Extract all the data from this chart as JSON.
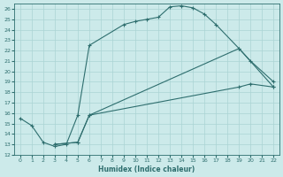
{
  "xlabel": "Humidex (Indice chaleur)",
  "background_color": "#cceaea",
  "grid_color": "#aad4d4",
  "line_color": "#2e6e6e",
  "xlim": [
    -0.5,
    22.5
  ],
  "ylim": [
    12,
    26.5
  ],
  "yticks": [
    12,
    13,
    14,
    15,
    16,
    17,
    18,
    19,
    20,
    21,
    22,
    23,
    24,
    25,
    26
  ],
  "xticks": [
    0,
    1,
    2,
    3,
    4,
    5,
    6,
    7,
    8,
    9,
    10,
    11,
    12,
    13,
    14,
    15,
    16,
    17,
    18,
    19,
    20,
    21,
    22
  ],
  "line1_x": [
    0,
    1,
    2,
    3,
    4,
    5,
    6,
    9,
    10,
    11,
    12,
    13,
    14,
    15,
    16,
    17,
    19,
    22
  ],
  "line1_y": [
    15.5,
    14.8,
    13.2,
    12.8,
    13.0,
    15.8,
    22.5,
    24.5,
    24.8,
    25.0,
    25.2,
    26.2,
    26.3,
    26.1,
    25.5,
    24.5,
    22.2,
    18.5
  ],
  "line2_x": [
    3,
    5,
    6,
    19,
    20,
    22
  ],
  "line2_y": [
    13.0,
    13.2,
    15.8,
    22.2,
    21.0,
    19.0
  ],
  "line3_x": [
    3,
    5,
    6,
    19,
    20,
    22
  ],
  "line3_y": [
    13.0,
    13.2,
    15.8,
    18.5,
    18.8,
    18.5
  ]
}
